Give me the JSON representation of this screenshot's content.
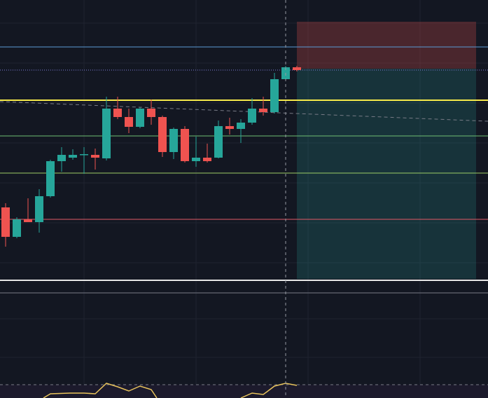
{
  "chart_data": {
    "type": "candlestick",
    "categories": [
      null,
      null,
      null,
      null,
      null,
      null,
      null,
      null,
      null,
      null,
      null,
      null,
      null,
      null,
      null,
      null,
      null,
      null,
      null,
      null,
      null,
      null,
      null,
      null,
      null,
      null,
      null
    ],
    "series": [
      {
        "name": "open",
        "values": [
          272,
          230,
          255,
          251,
          288,
          338,
          343,
          348,
          347,
          342,
          413,
          401,
          387,
          413,
          401,
          351,
          384,
          338,
          343,
          343,
          388,
          384,
          393,
          413,
          408,
          455,
          472
        ]
      },
      {
        "name": "high",
        "values": [
          278,
          258,
          285,
          298,
          340,
          358,
          355,
          358,
          356,
          430,
          430,
          413,
          415,
          426,
          403,
          386,
          388,
          373,
          363,
          396,
          400,
          398,
          428,
          430,
          464,
          474,
          474
        ]
      },
      {
        "name": "low",
        "values": [
          216,
          228,
          251,
          236,
          286,
          323,
          340,
          320,
          326,
          339,
          398,
          378,
          385,
          390,
          344,
          341,
          336,
          330,
          336,
          342,
          376,
          364,
          390,
          403,
          406,
          453,
          466
        ]
      },
      {
        "name": "close",
        "values": [
          230,
          255,
          251,
          288,
          338,
          347,
          347,
          348,
          343,
          413,
          401,
          387,
          413,
          401,
          351,
          384,
          338,
          343,
          338,
          388,
          384,
          393,
          413,
          408,
          455,
          472,
          468
        ]
      }
    ],
    "up_color": "#26a69a",
    "down_color": "#ef5350",
    "ylim": [
      0,
      568
    ],
    "grid": true
  }
}
